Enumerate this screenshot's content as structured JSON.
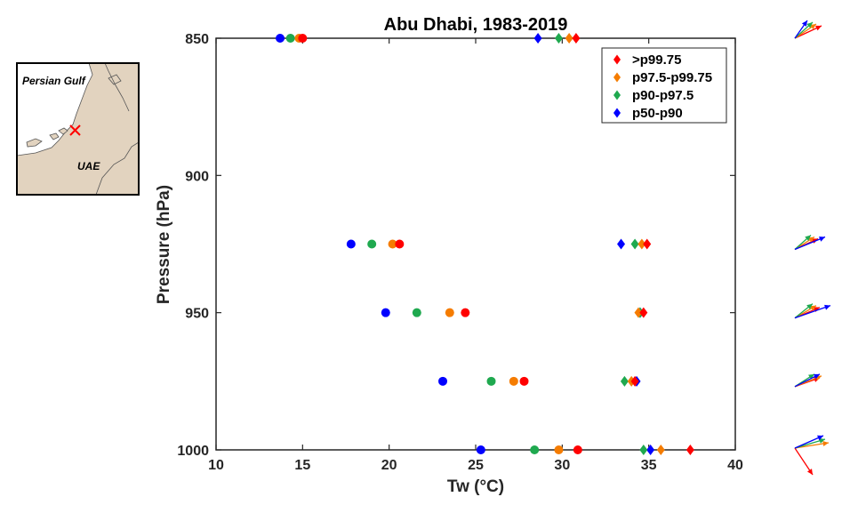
{
  "chart_data": {
    "type": "scatter",
    "title": "Abu Dhabi, 1983-2019",
    "xlabel": "Tw (°C)",
    "ylabel": "Pressure (hPa)",
    "xlim": [
      10,
      40
    ],
    "ylim": [
      850,
      1000
    ],
    "y_reversed": true,
    "xticks": [
      10,
      15,
      20,
      25,
      30,
      35,
      40
    ],
    "yticks": [
      850,
      900,
      950,
      1000
    ],
    "grid": false,
    "legend_position": "top-right",
    "series": [
      {
        "name": ">p99.75",
        "color": "#ff0000",
        "circles": [
          [
            15.0,
            850
          ],
          [
            20.6,
            925
          ],
          [
            24.4,
            950
          ],
          [
            27.8,
            975
          ],
          [
            30.9,
            1000
          ]
        ],
        "diamonds": [
          [
            30.8,
            850
          ],
          [
            34.9,
            925
          ],
          [
            34.7,
            950
          ],
          [
            34.2,
            975
          ],
          [
            37.4,
            1000
          ]
        ]
      },
      {
        "name": "p97.5-p99.75",
        "color": "#f57c00",
        "circles": [
          [
            14.8,
            850
          ],
          [
            20.2,
            925
          ],
          [
            23.5,
            950
          ],
          [
            27.2,
            975
          ],
          [
            29.8,
            1000
          ]
        ],
        "diamonds": [
          [
            30.4,
            850
          ],
          [
            34.6,
            925
          ],
          [
            34.4,
            950
          ],
          [
            34.0,
            975
          ],
          [
            35.7,
            1000
          ]
        ]
      },
      {
        "name": "p90-p97.5",
        "color": "#1fa94f",
        "circles": [
          [
            14.3,
            850
          ],
          [
            19.0,
            925
          ],
          [
            21.6,
            950
          ],
          [
            25.9,
            975
          ],
          [
            28.4,
            1000
          ]
        ],
        "diamonds": [
          [
            29.8,
            850
          ],
          [
            34.2,
            925
          ],
          [
            34.5,
            950
          ],
          [
            33.6,
            975
          ],
          [
            34.7,
            1000
          ]
        ]
      },
      {
        "name": "p50-p90",
        "color": "#0000ff",
        "circles": [
          [
            13.7,
            850
          ],
          [
            17.8,
            925
          ],
          [
            19.8,
            950
          ],
          [
            23.1,
            975
          ],
          [
            25.3,
            1000
          ]
        ],
        "diamonds": [
          [
            28.6,
            850
          ],
          [
            33.4,
            925
          ],
          [
            34.5,
            950
          ],
          [
            34.3,
            975
          ],
          [
            35.1,
            1000
          ]
        ]
      }
    ]
  },
  "inset_map": {
    "labels": {
      "gulf": "Persian Gulf",
      "country": "UAE"
    },
    "land_color": "#e2d3bf",
    "water_color": "#ffffff",
    "marker_color": "#ff0000"
  },
  "wind_arrows": {
    "levels": [
      850,
      925,
      950,
      975,
      1000
    ]
  }
}
